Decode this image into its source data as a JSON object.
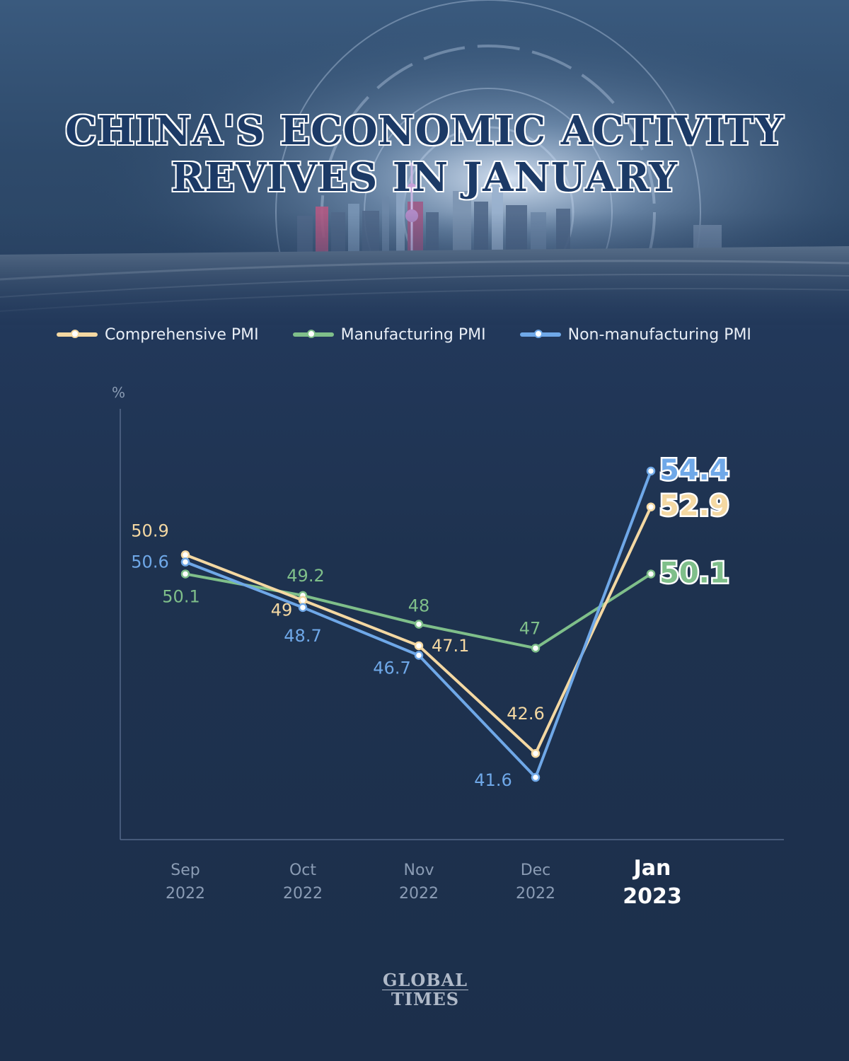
{
  "header": {
    "title_line1": "CHINA'S ECONOMIC ACTIVITY",
    "title_line2": "REVIVES IN JANUARY"
  },
  "legend": [
    {
      "label": "Comprehensive PMI",
      "color": "#f4d8a2"
    },
    {
      "label": "Manufacturing PMI",
      "color": "#7fbf8a"
    },
    {
      "label": "Non-manufacturing PMI",
      "color": "#6fa8e8"
    }
  ],
  "chart_data": {
    "type": "line",
    "ylabel": "%",
    "ylim": [
      39,
      57
    ],
    "categories": [
      {
        "month": "Sep",
        "year": "2022",
        "highlight": false
      },
      {
        "month": "Oct",
        "year": "2022",
        "highlight": false
      },
      {
        "month": "Nov",
        "year": "2022",
        "highlight": false
      },
      {
        "month": "Dec",
        "year": "2022",
        "highlight": false
      },
      {
        "month": "Jan",
        "year": "2023",
        "highlight": true
      }
    ],
    "series": [
      {
        "name": "Comprehensive PMI",
        "color": "#f4d8a2",
        "values": [
          50.9,
          49,
          47.1,
          42.6,
          52.9
        ],
        "labels": [
          "50.9",
          "49",
          "47.1",
          "42.6",
          "52.9"
        ]
      },
      {
        "name": "Manufacturing PMI",
        "color": "#7fbf8a",
        "values": [
          50.1,
          49.2,
          48,
          47,
          50.1
        ],
        "labels": [
          "50.1",
          "49.2",
          "48",
          "47",
          "50.1"
        ]
      },
      {
        "name": "Non-manufacturing PMI",
        "color": "#6fa8e8",
        "values": [
          50.6,
          48.7,
          46.7,
          41.6,
          54.4
        ],
        "labels": [
          "50.6",
          "48.7",
          "46.7",
          "41.6",
          "54.4"
        ]
      }
    ]
  },
  "footer": {
    "logo_line1": "GLOBAL",
    "logo_line2": "TIMES"
  }
}
